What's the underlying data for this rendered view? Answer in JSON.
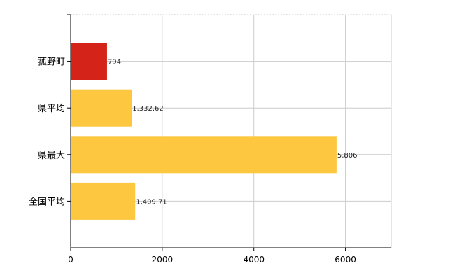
{
  "chart_data": {
    "type": "bar",
    "orientation": "horizontal",
    "categories": [
      "菰野町",
      "県平均",
      "県最大",
      "全国平均"
    ],
    "values": [
      794,
      1332.62,
      5806,
      1409.71
    ],
    "value_labels": [
      "794",
      "1,332.62",
      "5,806",
      "1,409.71"
    ],
    "bar_colors": [
      "#d42318",
      "#fdc83f",
      "#fdc83f",
      "#fdc83f"
    ],
    "xlim": [
      0,
      7000
    ],
    "xticks": [
      0,
      2000,
      4000,
      6000
    ],
    "xtick_labels": [
      "0",
      "2000",
      "4000",
      "6000"
    ],
    "grid": true,
    "grid_style": "dotted-top-solid-vertical",
    "legend": "none"
  },
  "colors": {
    "highlight": "#d42318",
    "default_bar": "#fdc83f",
    "grid": "#cccccc",
    "axis": "#000000"
  }
}
